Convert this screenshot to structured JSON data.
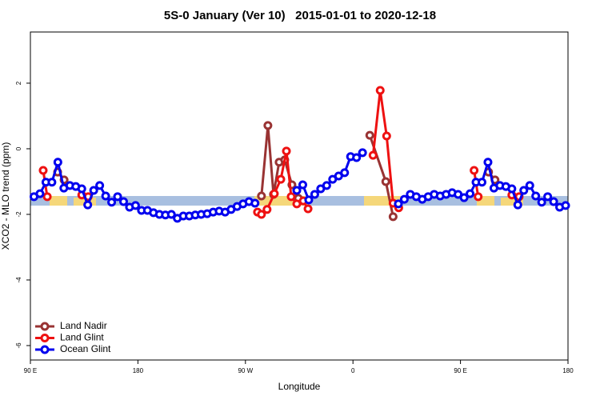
{
  "chart_data": {
    "type": "line",
    "title": "5S-0 January (Ver 10)   2015-01-01 to 2020-12-18",
    "xlabel": "Longitude",
    "ylabel": "XCO2 - MLO trend (ppm)",
    "xlim": [
      90,
      540
    ],
    "ylim": [
      -6.44,
      3.56
    ],
    "xticks": [
      {
        "value": 90,
        "label": "90 E"
      },
      {
        "value": 180,
        "label": "180"
      },
      {
        "value": 270,
        "label": "90 W"
      },
      {
        "value": 360,
        "label": "0"
      },
      {
        "value": 450,
        "label": "90 E"
      },
      {
        "value": 540,
        "label": "180"
      }
    ],
    "yticks": [
      -6,
      -4,
      -2,
      0,
      2
    ],
    "legend": "bottom-left",
    "series": [
      {
        "name": "Land Nadir",
        "color": "#993333",
        "x": [
          112.8,
          118.2,
          null,
          283.4,
          288.8,
          293.5,
          298.2,
          302.9,
          308.9,
          314.3,
          null,
          374.1,
          387.5,
          393.6,
          null,
          473.5,
          478.9
        ],
        "values": [
          -0.71,
          -0.95,
          null,
          -1.44,
          0.71,
          -1.39,
          -0.41,
          -0.34,
          -1.1,
          -1.51,
          null,
          0.41,
          -1.0,
          -2.07,
          null,
          -0.71,
          -0.95
        ]
      },
      {
        "name": "Land Glint",
        "color": "#ee1111",
        "x": [
          100.7,
          104.1,
          null,
          133.0,
          138.4,
          null,
          280.1,
          283.4,
          288.1,
          294.2,
          299.6,
          304.3,
          308.3,
          313.0,
          318.4,
          322.4,
          null,
          376.8,
          382.8,
          388.2,
          393.6,
          398.3,
          null,
          461.4,
          464.8,
          null,
          493.0,
          499.1
        ],
        "values": [
          -0.66,
          -1.46,
          null,
          -1.41,
          -1.46,
          null,
          -1.93,
          -2.0,
          -1.85,
          -1.37,
          -0.93,
          -0.07,
          -1.46,
          -1.68,
          -1.59,
          -1.83,
          null,
          -0.2,
          1.78,
          0.39,
          -1.66,
          -1.8,
          null,
          -0.66,
          -1.46,
          null,
          -1.41,
          -1.46
        ]
      },
      {
        "name": "Ocean Glint",
        "color": "#0000ee",
        "x": [
          93,
          98,
          103,
          108,
          113,
          118,
          123,
          128,
          133,
          138,
          143,
          148,
          153,
          158,
          163,
          168,
          173,
          178,
          183,
          188,
          193,
          198,
          203,
          208,
          213,
          218,
          223,
          228,
          233,
          238,
          243,
          248,
          253,
          258,
          263,
          268,
          273,
          278,
          283,
          288,
          293,
          298,
          303,
          308,
          313,
          318,
          323,
          328,
          333,
          338,
          343,
          348,
          353,
          358,
          363,
          368,
          373,
          378,
          383,
          388,
          393,
          398,
          403,
          408,
          413,
          418,
          423,
          428,
          433,
          438,
          443,
          448,
          453,
          458,
          463,
          468,
          473,
          478,
          483,
          488,
          493,
          498,
          503,
          508,
          513,
          518,
          523,
          528,
          533,
          538
        ],
        "values": [
          -1.46,
          -1.37,
          -1.02,
          -1.02,
          -0.41,
          -1.2,
          -1.12,
          -1.15,
          -1.22,
          -1.71,
          -1.27,
          -1.12,
          -1.44,
          -1.63,
          -1.46,
          -1.61,
          -1.78,
          -1.73,
          -1.88,
          -1.88,
          -1.95,
          -2.0,
          -2.02,
          -2.0,
          -2.12,
          -2.05,
          -2.05,
          -2.02,
          -2.0,
          -1.98,
          -1.93,
          -1.9,
          -1.93,
          -1.85,
          -1.76,
          -1.68,
          -1.61,
          -1.66,
          null,
          null,
          null,
          null,
          null,
          null,
          -1.27,
          -1.1,
          -1.56,
          -1.39,
          -1.22,
          -1.12,
          -0.93,
          -0.83,
          -0.73,
          -0.24,
          -0.27,
          -0.12,
          null,
          null,
          null,
          null,
          null,
          -1.68,
          -1.54,
          -1.39,
          -1.46,
          -1.54,
          -1.46,
          -1.39,
          -1.44,
          -1.39,
          -1.34,
          -1.39,
          -1.49,
          -1.37,
          -1.02,
          -1.02,
          -0.41,
          -1.2,
          -1.12,
          -1.15,
          -1.22,
          -1.71,
          -1.27,
          -1.12,
          -1.44,
          -1.63,
          -1.46,
          -1.61,
          -1.78,
          -1.73
        ]
      }
    ]
  }
}
